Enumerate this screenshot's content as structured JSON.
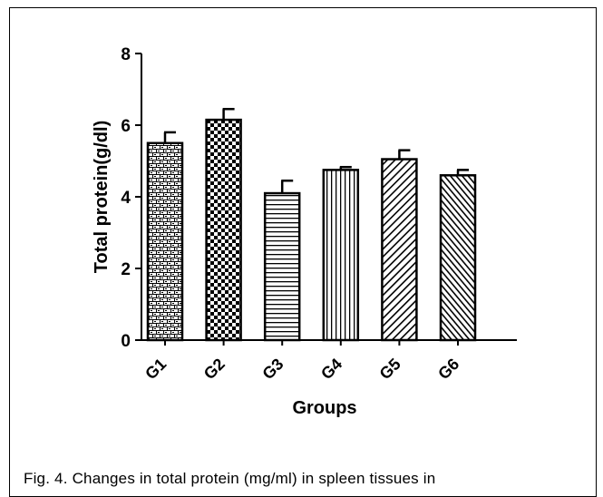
{
  "chart_data": {
    "type": "bar",
    "title": "",
    "xlabel": "Groups",
    "ylabel": "Total protein(g/dl)",
    "categories": [
      "G1",
      "G2",
      "G3",
      "G4",
      "G5",
      "G6"
    ],
    "values": [
      5.5,
      6.15,
      4.1,
      4.75,
      5.05,
      4.6
    ],
    "errors": [
      0.3,
      0.3,
      0.35,
      0.08,
      0.25,
      0.15
    ],
    "patterns": [
      "brick",
      "checker",
      "horizontal-lines",
      "vertical-lines",
      "diagonal-lines",
      "diagonal-dense"
    ],
    "ylim": [
      0,
      8
    ],
    "yticks": [
      0,
      2,
      4,
      6,
      8
    ],
    "grid": false,
    "legend": "none",
    "bar_color": "#000000",
    "background": "#ffffff"
  },
  "caption": "Fig. 4. Changes in total protein (mg/ml) in spleen tissues in"
}
